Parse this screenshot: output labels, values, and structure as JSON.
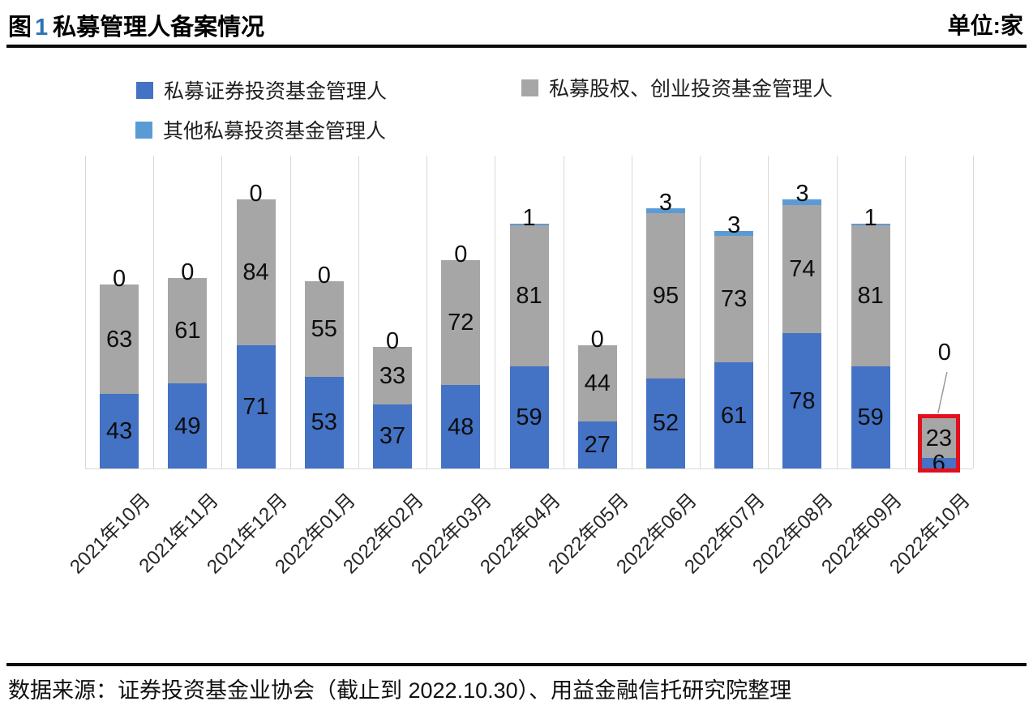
{
  "header": {
    "figure_label": "图",
    "figure_number": "1",
    "title": "私募管理人备案情况",
    "unit": "单位:家"
  },
  "legend": {
    "items": [
      {
        "label": "私募证券投资基金管理人",
        "color": "#4472C4"
      },
      {
        "label": "私募股权、创业投资基金管理人",
        "color": "#A6A6A6"
      },
      {
        "label": "其他私募投资基金管理人",
        "color": "#5B9BD5"
      }
    ]
  },
  "footer": {
    "source": "数据来源：证券投资基金业协会（截止到 2022.10.30）、用益金融信托研究院整理"
  },
  "chart_data": {
    "type": "bar",
    "stacked": true,
    "title": "图1 私募管理人备案情况",
    "unit": "家",
    "grid": "vertical",
    "legend_position": "top",
    "ylim": [
      0,
      180
    ],
    "categories": [
      "2021年10月",
      "2021年11月",
      "2021年12月",
      "2022年01月",
      "2022年02月",
      "2022年03月",
      "2022年04月",
      "2022年05月",
      "2022年06月",
      "2022年07月",
      "2022年08月",
      "2022年09月",
      "2022年10月"
    ],
    "series": [
      {
        "name": "私募证券投资基金管理人",
        "color": "#4472C4",
        "values": [
          43,
          49,
          71,
          53,
          37,
          48,
          59,
          27,
          52,
          61,
          78,
          59,
          6
        ]
      },
      {
        "name": "私募股权、创业投资基金管理人",
        "color": "#A6A6A6",
        "values": [
          63,
          61,
          84,
          55,
          33,
          72,
          81,
          44,
          95,
          73,
          74,
          81,
          23
        ]
      },
      {
        "name": "其他私募投资基金管理人",
        "color": "#5B9BD5",
        "values": [
          0,
          0,
          0,
          0,
          0,
          0,
          1,
          0,
          3,
          3,
          3,
          1,
          0
        ]
      }
    ],
    "highlight": {
      "category_index": 12,
      "box_color": "#E2101C",
      "callout_label": "0"
    }
  }
}
